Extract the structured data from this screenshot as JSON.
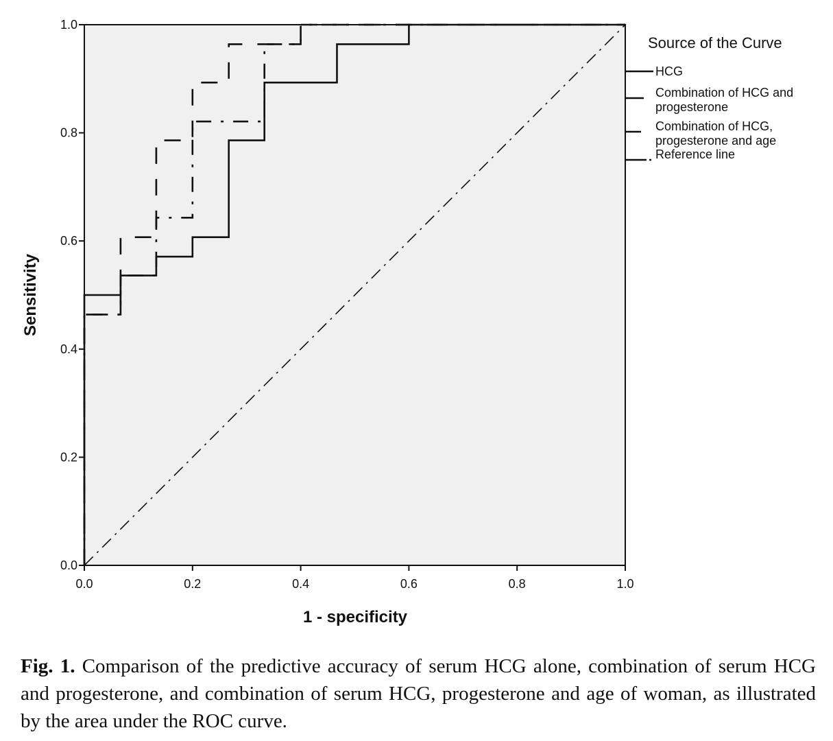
{
  "chart_data": {
    "type": "line",
    "subtype": "ROC step curves",
    "xlabel": "1 - specificity",
    "ylabel": "Sensitivity",
    "xlim": [
      0.0,
      1.0
    ],
    "ylim": [
      0.0,
      1.0
    ],
    "x_ticks": [
      "0.0",
      "0.2",
      "0.4",
      "0.6",
      "0.8",
      "1.0"
    ],
    "y_ticks": [
      "0.0",
      "0.2",
      "0.4",
      "0.6",
      "0.8",
      "1.0"
    ],
    "grid": false,
    "plot_background": "#f0f0f0",
    "legend": {
      "title": "Source of the Curve",
      "position": "right",
      "entries": [
        "HCG",
        "Combination of HCG and progesterone",
        "Combination of HCG, progesterone and age",
        "Reference line"
      ]
    },
    "series": [
      {
        "name": "HCG",
        "style": "solid",
        "points": [
          [
            0,
            0
          ],
          [
            0,
            0.5
          ],
          [
            0.067,
            0.5
          ],
          [
            0.067,
            0.536
          ],
          [
            0.133,
            0.536
          ],
          [
            0.133,
            0.571
          ],
          [
            0.2,
            0.571
          ],
          [
            0.2,
            0.607
          ],
          [
            0.267,
            0.607
          ],
          [
            0.267,
            0.786
          ],
          [
            0.333,
            0.786
          ],
          [
            0.333,
            0.893
          ],
          [
            0.467,
            0.893
          ],
          [
            0.467,
            0.964
          ],
          [
            0.6,
            0.964
          ],
          [
            0.6,
            1.0
          ],
          [
            1.0,
            1.0
          ]
        ]
      },
      {
        "name": "Combination of HCG and progesterone",
        "style": "dashed",
        "points": [
          [
            0,
            0
          ],
          [
            0,
            0.464
          ],
          [
            0.067,
            0.464
          ],
          [
            0.067,
            0.607
          ],
          [
            0.133,
            0.607
          ],
          [
            0.133,
            0.786
          ],
          [
            0.2,
            0.786
          ],
          [
            0.2,
            0.893
          ],
          [
            0.267,
            0.893
          ],
          [
            0.267,
            0.964
          ],
          [
            0.4,
            0.964
          ],
          [
            0.4,
            1.0
          ],
          [
            1.0,
            1.0
          ]
        ]
      },
      {
        "name": "Combination of HCG, progesterone and age",
        "style": "dashdot",
        "points": [
          [
            0,
            0
          ],
          [
            0,
            0.464
          ],
          [
            0.067,
            0.464
          ],
          [
            0.067,
            0.536
          ],
          [
            0.133,
            0.536
          ],
          [
            0.133,
            0.643
          ],
          [
            0.2,
            0.643
          ],
          [
            0.2,
            0.821
          ],
          [
            0.333,
            0.821
          ],
          [
            0.333,
            0.964
          ],
          [
            0.4,
            0.964
          ],
          [
            0.4,
            1.0
          ],
          [
            1.0,
            1.0
          ]
        ]
      },
      {
        "name": "Reference line",
        "style": "dashdot-diagonal",
        "points": [
          [
            0,
            0
          ],
          [
            1,
            1
          ]
        ]
      }
    ]
  },
  "axes": {
    "x_title": "1 - specificity",
    "y_title": "Sensitivity",
    "x_ticks": [
      "0.0",
      "0.2",
      "0.4",
      "0.6",
      "0.8",
      "1.0"
    ],
    "y_ticks": [
      "0.0",
      "0.2",
      "0.4",
      "0.6",
      "0.8",
      "1.0"
    ]
  },
  "legend": {
    "title": "Source of the Curve",
    "items": [
      {
        "lines": [
          "HCG"
        ]
      },
      {
        "lines": [
          "Combination of HCG and",
          "progesterone"
        ]
      },
      {
        "lines": [
          "Combination of HCG,",
          "progesterone and age"
        ]
      },
      {
        "lines": [
          "Reference line"
        ]
      }
    ]
  },
  "caption": {
    "label": "Fig. 1.",
    "text": " Comparison of the predictive accuracy of serum HCG alone, combination of serum HCG and progesterone, and combination of serum HCG, progesterone and age of woman, as illustrated by the area under the ROC curve."
  },
  "colors": {
    "line": "#111111",
    "plot_bg": "#f0f0f0",
    "page_bg": "#ffffff"
  }
}
